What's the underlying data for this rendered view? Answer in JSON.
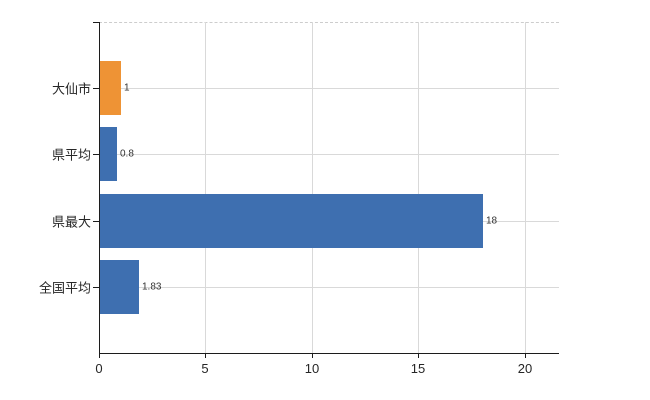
{
  "chart_data": {
    "type": "bar",
    "orientation": "horizontal",
    "title": "",
    "xlabel": "",
    "ylabel": "",
    "categories": [
      "大仙市",
      "県平均",
      "県最大",
      "全国平均"
    ],
    "values": [
      1,
      0.8,
      18,
      1.83
    ],
    "value_labels": [
      "1",
      "0.8",
      "18",
      "1.83"
    ],
    "bar_colors": [
      "#ee9335",
      "#3e6fb0",
      "#3e6fb0",
      "#3e6fb0"
    ],
    "x_ticks": [
      0,
      5,
      10,
      15,
      20
    ],
    "xlim": [
      0,
      21.6
    ],
    "grid": true,
    "legend": false
  },
  "colors": {
    "highlight_bar": "#ee9335",
    "default_bar": "#3e6fb0",
    "gridline": "#d9d9d9",
    "axis": "#1c1c1c",
    "label_text": "#262626",
    "value_text": "#333333",
    "background": "#ffffff"
  }
}
